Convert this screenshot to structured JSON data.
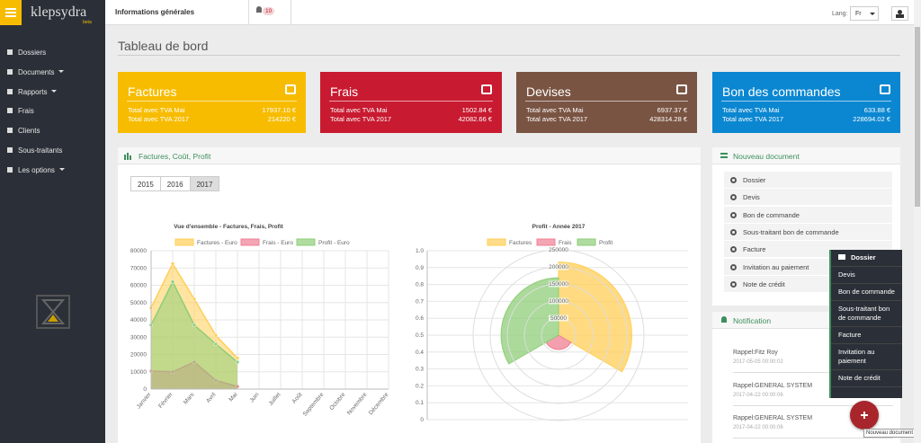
{
  "header": {
    "logo": "klepsydra",
    "logo_badge": "beta",
    "section": "Informations générales",
    "notifications": "10",
    "lang_label": "Lang:",
    "lang": "Fr"
  },
  "sidebar": {
    "items": [
      "Dossiers",
      "Documents",
      "Rapports",
      "Frais",
      "Clients",
      "Sous-traitants",
      "Les options"
    ]
  },
  "page_title": "Tableau de bord",
  "cards": [
    {
      "title": "Factures",
      "color": "#f7bc00",
      "rows": [
        {
          "label": "Total avec TVA Mai",
          "value": "17937.10 €"
        },
        {
          "label": "Total avec TVA 2017",
          "value": "214220 €"
        }
      ]
    },
    {
      "title": "Frais",
      "color": "#c81a30",
      "rows": [
        {
          "label": "Total avec TVA Mai",
          "value": "1502.84 €"
        },
        {
          "label": "Total avec TVA 2017",
          "value": "42082.66 €"
        }
      ]
    },
    {
      "title": "Devises",
      "color": "#7a5443",
      "rows": [
        {
          "label": "Total avec TVA Mai",
          "value": "6937.37 €"
        },
        {
          "label": "Total avec TVA 2017",
          "value": "428314.28 €"
        }
      ]
    },
    {
      "title": "Bon des commandes",
      "color": "#0b87d1",
      "rows": [
        {
          "label": "Total avec TVA Mai",
          "value": "633.88 €"
        },
        {
          "label": "Total avec TVA 2017",
          "value": "228694.02 €"
        }
      ]
    }
  ],
  "chart_panel": {
    "title": "Factures, Coût, Profit",
    "years": [
      "2015",
      "2016",
      "2017"
    ]
  },
  "chart_data": [
    {
      "type": "area",
      "title": "Vue d'ensemble - Factures, Frais, Profit",
      "categories": [
        "Janvier",
        "Février",
        "Mars",
        "Avril",
        "Mai",
        "Juin",
        "Juillet",
        "Août",
        "Septembre",
        "Octobre",
        "Novembre",
        "Décembre"
      ],
      "series": [
        {
          "name": "Factures - Euro",
          "color": "#ffce56",
          "values": [
            47000,
            72500,
            52000,
            31000,
            17937,
            null,
            null,
            null,
            null,
            null,
            null,
            null
          ]
        },
        {
          "name": "Frais - Euro",
          "color": "#f07f93",
          "values": [
            10400,
            10000,
            15600,
            5000,
            1503,
            null,
            null,
            null,
            null,
            null,
            null,
            null
          ]
        },
        {
          "name": "Profit - Euro",
          "color": "#8fcd78",
          "values": [
            37000,
            62000,
            37000,
            26000,
            15600,
            null,
            null,
            null,
            null,
            null,
            null,
            null
          ]
        }
      ],
      "ylim": [
        0,
        80000
      ],
      "yticks": [
        0,
        10000,
        20000,
        30000,
        40000,
        50000,
        60000,
        70000,
        80000
      ],
      "grid": true
    },
    {
      "type": "polarArea",
      "title": "Profit - Année 2017",
      "categories": [
        "Factures",
        "Frais",
        "Profit"
      ],
      "colors": [
        "#ffce56",
        "#f07f93",
        "#8fcd78"
      ],
      "values": [
        214220,
        42082.66,
        168000
      ],
      "rlim": [
        0,
        250000
      ],
      "rticks": [
        50000,
        100000,
        150000,
        200000,
        250000
      ],
      "ylim": [
        0,
        1
      ],
      "yticks": [
        0,
        0.1,
        0.2,
        0.3,
        0.4,
        0.5,
        0.6,
        0.7,
        0.8,
        0.9,
        {
          "value": 1,
          "label": "1.0"
        }
      ],
      "grid": true
    }
  ],
  "new_document": {
    "title": "Nouveau document",
    "items": [
      "Dossier",
      "Devis",
      "Bon de commande",
      "Sous-traitant bon de commande",
      "Facture",
      "Invitation au paiement",
      "Note de crédit"
    ]
  },
  "notification": {
    "title": "Notification",
    "items": [
      {
        "text": "Rappel:Fitz Roy",
        "date": "2017-05-05 00:00:02"
      },
      {
        "text": "Rappel:GENERAL SYSTEM",
        "date": "2017-04-22 00:00:06"
      },
      {
        "text": "Rappel:GENERAL SYSTEM",
        "date": "2017-04-22 00:00:06"
      }
    ]
  },
  "quick_menu": {
    "items": [
      "Dossier",
      "Devis",
      "Bon de commande",
      "Sous-traitant bon de commande",
      "Facture",
      "Invitation au paiement",
      "Note de crédit"
    ]
  },
  "fab_tooltip": "Nouveau document"
}
